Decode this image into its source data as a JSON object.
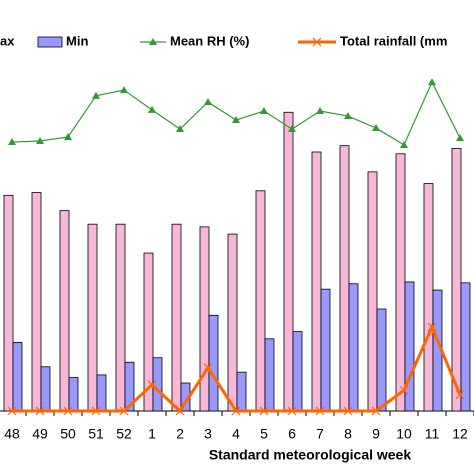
{
  "chart_data": {
    "type": "bar",
    "x_label": "Standard meteorological week",
    "categories": [
      "48",
      "49",
      "50",
      "51",
      "52",
      "1",
      "2",
      "3",
      "4",
      "5",
      "6",
      "7",
      "8",
      "9",
      "10",
      "11",
      "12"
    ],
    "series": [
      {
        "name": "ax",
        "type": "bar",
        "color": "#f7b8d8",
        "values": [
          23.9,
          24.2,
          22.2,
          20.7,
          20.7,
          17.5,
          20.7,
          20.4,
          19.6,
          24.4,
          33.1,
          28.7,
          29.4,
          26.5,
          28.5,
          25.2,
          29.1
        ]
      },
      {
        "name": "Min",
        "type": "bar",
        "color": "#9999ff",
        "values": [
          7.6,
          4.9,
          3.7,
          4.0,
          5.4,
          5.9,
          3.1,
          10.6,
          4.3,
          8.0,
          8.8,
          13.5,
          14.1,
          11.3,
          14.3,
          13.4,
          14.2
        ]
      },
      {
        "name": "Mean RH (%)",
        "type": "line",
        "marker": "triangle",
        "axis": "y2",
        "color": "#339933",
        "values": [
          74.5,
          74.8,
          75.9,
          87.3,
          88.9,
          83.4,
          78.1,
          85.6,
          80.6,
          83.1,
          78.1,
          83.1,
          81.7,
          78.4,
          73.7,
          91.1,
          75.6
        ]
      },
      {
        "name": "Total rainfall (mm",
        "type": "line",
        "marker": "x",
        "color": "#ff6600",
        "values": [
          0,
          0,
          0,
          0,
          0,
          2.9,
          0,
          4.8,
          0,
          0,
          0,
          0,
          0,
          0,
          2.3,
          9.3,
          1.8
        ]
      }
    ],
    "ylim": [
      0,
      40
    ],
    "y2lim": [
      0,
      100
    ]
  }
}
